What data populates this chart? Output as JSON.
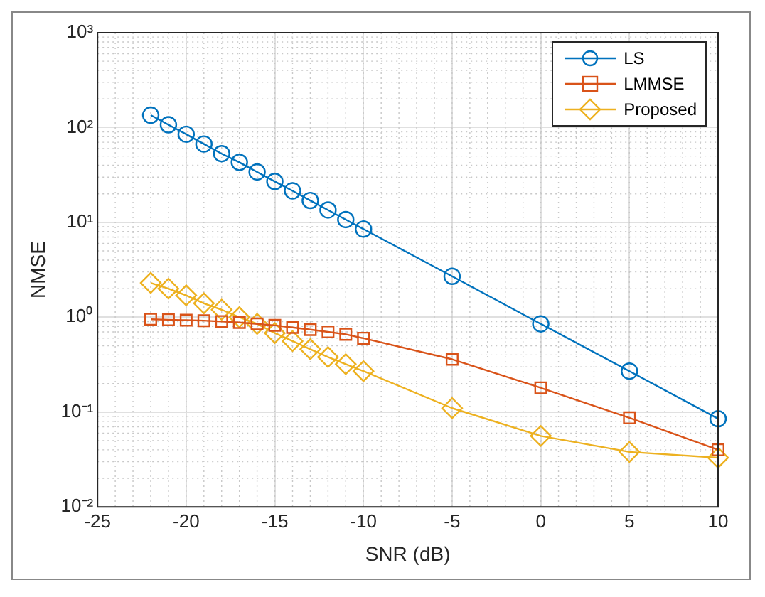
{
  "chart_data": {
    "type": "line",
    "xlabel": "SNR (dB)",
    "ylabel": "NMSE",
    "x": [
      -22,
      -21,
      -20,
      -19,
      -18,
      -17,
      -16,
      -15,
      -14,
      -13,
      -12,
      -11,
      -10,
      -5,
      0,
      5,
      10
    ],
    "series": [
      {
        "name": "LS",
        "color": "#0072bd",
        "marker": "circle",
        "values": [
          135,
          107,
          85,
          67,
          53,
          43,
          34,
          27,
          21.5,
          17,
          13.5,
          10.7,
          8.5,
          2.7,
          0.85,
          0.27,
          0.085
        ]
      },
      {
        "name": "LMMSE",
        "color": "#d95319",
        "marker": "square",
        "values": [
          0.95,
          0.94,
          0.93,
          0.92,
          0.9,
          0.88,
          0.85,
          0.82,
          0.78,
          0.74,
          0.7,
          0.66,
          0.6,
          0.36,
          0.18,
          0.087,
          0.04
        ]
      },
      {
        "name": "Proposed",
        "color": "#edb120",
        "marker": "diamond",
        "values": [
          2.3,
          2.0,
          1.7,
          1.4,
          1.2,
          1.0,
          0.85,
          0.68,
          0.56,
          0.46,
          0.38,
          0.32,
          0.27,
          0.11,
          0.056,
          0.038,
          0.033
        ]
      }
    ],
    "xlim": [
      -25,
      10
    ],
    "xticks": [
      -25,
      -20,
      -15,
      -10,
      -5,
      0,
      5,
      10
    ],
    "ylim": [
      0.01,
      1000
    ],
    "yticks": [
      {
        "value": 0.01,
        "label": "10⁻²"
      },
      {
        "value": 0.1,
        "label": "10⁻¹"
      },
      {
        "value": 1,
        "label": "10⁰"
      },
      {
        "value": 10,
        "label": "10¹"
      },
      {
        "value": 100,
        "label": "10²"
      },
      {
        "value": 1000,
        "label": "10³"
      }
    ],
    "log": "y",
    "grid": true,
    "legend": "top right",
    "line_style": "solid"
  }
}
